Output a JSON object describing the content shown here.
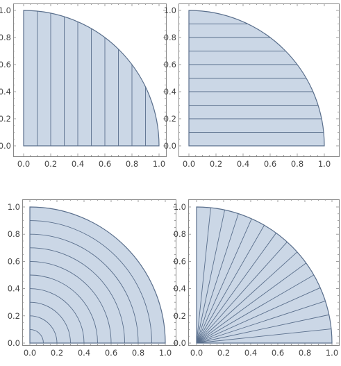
{
  "chart_data": [
    {
      "type": "area",
      "subtype": "quarter-disk-region",
      "region": "quarter disk of radius 1 (x >= 0, y >= 0, x^2 + y^2 <= 1)",
      "mesh": "vertical lines",
      "mesh_values": [
        0.1,
        0.2,
        0.3,
        0.4,
        0.5,
        0.6,
        0.7,
        0.8,
        0.9
      ],
      "xlim": [
        0,
        1
      ],
      "ylim": [
        0,
        1
      ],
      "xticks": [
        "0.0",
        "0.2",
        "0.4",
        "0.6",
        "0.8",
        "1.0"
      ],
      "yticks": [
        "0.0",
        "0.2",
        "0.4",
        "0.6",
        "0.8",
        "1.0"
      ],
      "fill_color": "#cbd7e6",
      "line_color": "#5a6f8c"
    },
    {
      "type": "area",
      "subtype": "quarter-disk-region",
      "region": "quarter disk of radius 1 (x >= 0, y >= 0, x^2 + y^2 <= 1)",
      "mesh": "horizontal lines",
      "mesh_values": [
        0.1,
        0.2,
        0.3,
        0.4,
        0.5,
        0.6,
        0.7,
        0.8,
        0.9
      ],
      "xlim": [
        0,
        1
      ],
      "ylim": [
        0,
        1
      ],
      "xticks": [
        "0.0",
        "0.2",
        "0.4",
        "0.6",
        "0.8",
        "1.0"
      ],
      "yticks": [
        "0.0",
        "0.2",
        "0.4",
        "0.6",
        "0.8",
        "1.0"
      ],
      "fill_color": "#cbd7e6",
      "line_color": "#5a6f8c"
    },
    {
      "type": "area",
      "subtype": "quarter-disk-region",
      "region": "quarter disk of radius 1 (x >= 0, y >= 0, x^2 + y^2 <= 1)",
      "mesh": "concentric arcs",
      "mesh_values": [
        0.1,
        0.2,
        0.3,
        0.4,
        0.5,
        0.6,
        0.7,
        0.8,
        0.9
      ],
      "xlim": [
        0,
        1
      ],
      "ylim": [
        0,
        1
      ],
      "xticks": [
        "0.0",
        "0.2",
        "0.4",
        "0.6",
        "0.8",
        "1.0"
      ],
      "yticks": [
        "0.0",
        "0.2",
        "0.4",
        "0.6",
        "0.8",
        "1.0"
      ],
      "fill_color": "#cbd7e6",
      "line_color": "#5a6f8c"
    },
    {
      "type": "area",
      "subtype": "quarter-disk-region",
      "region": "quarter disk of radius 1 (x >= 0, y >= 0, x^2 + y^2 <= 1)",
      "mesh": "radial lines from origin",
      "mesh_values_degrees": [
        6,
        12,
        18,
        24,
        30,
        36,
        42,
        48,
        54,
        60,
        66,
        72,
        78,
        84
      ],
      "xlim": [
        0,
        1
      ],
      "ylim": [
        0,
        1
      ],
      "xticks": [
        "0.0",
        "0.2",
        "0.4",
        "0.6",
        "0.8",
        "1.0"
      ],
      "yticks": [
        "0.0",
        "0.2",
        "0.4",
        "0.6",
        "0.8",
        "1.0"
      ],
      "fill_color": "#cbd7e6",
      "line_color": "#5a6f8c"
    }
  ]
}
